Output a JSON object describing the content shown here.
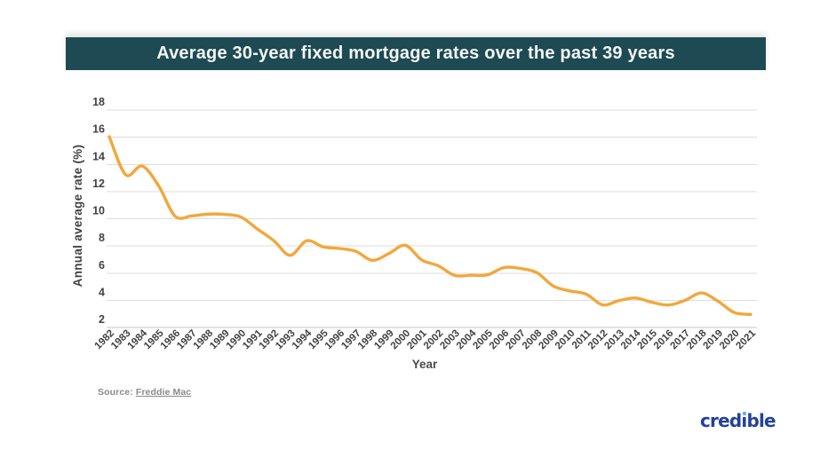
{
  "header": {
    "title": "Average 30-year fixed mortgage rates over the past 39 years",
    "background": "#1D4A53",
    "text_color": "#F4F6F5"
  },
  "chart_data": {
    "type": "line",
    "title": "Average 30-year fixed mortgage rates over the past 39 years",
    "xlabel": "Year",
    "ylabel": "Annual average rate (%)",
    "x": [
      1982,
      1983,
      1984,
      1985,
      1986,
      1987,
      1988,
      1989,
      1990,
      1991,
      1992,
      1993,
      1994,
      1995,
      1996,
      1997,
      1998,
      1999,
      2000,
      2001,
      2002,
      2003,
      2004,
      2005,
      2006,
      2007,
      2008,
      2009,
      2010,
      2011,
      2012,
      2013,
      2014,
      2015,
      2016,
      2017,
      2018,
      2019,
      2020,
      2021
    ],
    "series": [
      {
        "name": "30-year fixed mortgage rate",
        "values": [
          16.04,
          13.24,
          13.88,
          12.43,
          10.19,
          10.21,
          10.34,
          10.32,
          10.13,
          9.25,
          8.39,
          7.31,
          8.38,
          7.93,
          7.81,
          7.6,
          6.94,
          7.44,
          8.05,
          6.97,
          6.54,
          5.83,
          5.84,
          5.87,
          6.41,
          6.34,
          6.03,
          5.04,
          4.69,
          4.45,
          3.66,
          3.98,
          4.17,
          3.85,
          3.65,
          3.99,
          4.54,
          3.94,
          3.1,
          2.96
        ]
      }
    ],
    "y_ticks": [
      18,
      16,
      14,
      12,
      10,
      8,
      6,
      4,
      2
    ],
    "ylim": [
      2,
      18
    ],
    "grid": "horizontal",
    "legend": "none",
    "line_color": "#F2A73C",
    "grid_color": "#DDDDDD",
    "axis_text_color": "#424242"
  },
  "source": {
    "label": "Source:",
    "link": "Freddie Mac"
  },
  "branding": {
    "logo_text": "credible",
    "logo_color": "#24419B",
    "dot_color": "#64ADE0"
  }
}
